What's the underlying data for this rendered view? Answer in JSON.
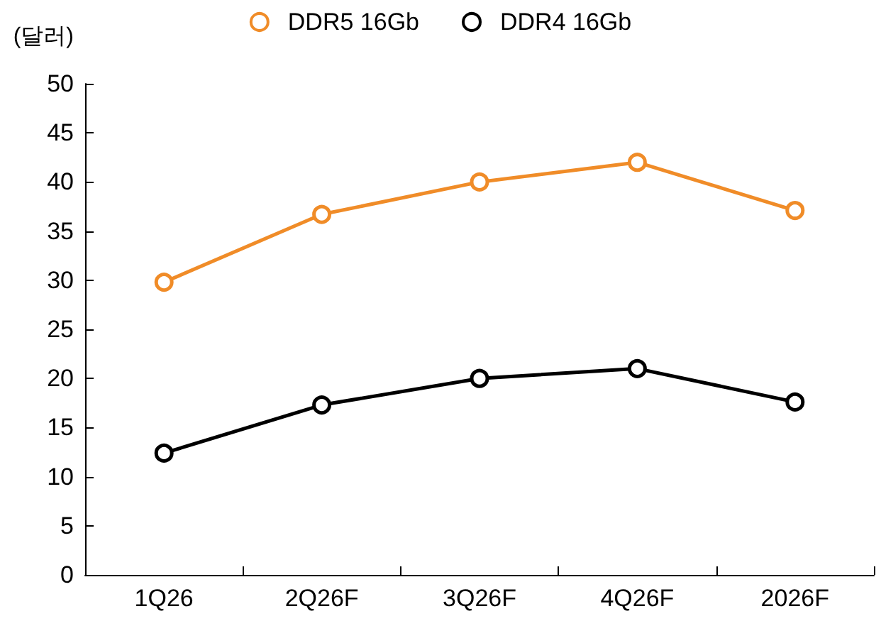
{
  "chart_data": {
    "type": "line",
    "ylabel": "(달러)",
    "categories": [
      "1Q26",
      "2Q26F",
      "3Q26F",
      "4Q26F",
      "2026F"
    ],
    "series": [
      {
        "name": "DDR5 16Gb",
        "color": "#f08c28",
        "values": [
          29.8,
          36.7,
          40,
          42,
          37.1
        ]
      },
      {
        "name": "DDR4 16Gb",
        "color": "#000000",
        "values": [
          12.4,
          17.3,
          20,
          21,
          17.6
        ]
      }
    ],
    "ylim": [
      0,
      50
    ],
    "yticks": [
      0,
      5,
      10,
      15,
      20,
      25,
      30,
      35,
      40,
      45,
      50
    ],
    "grid": false,
    "legend": "top",
    "marker": "circle",
    "line_style": "solid"
  }
}
